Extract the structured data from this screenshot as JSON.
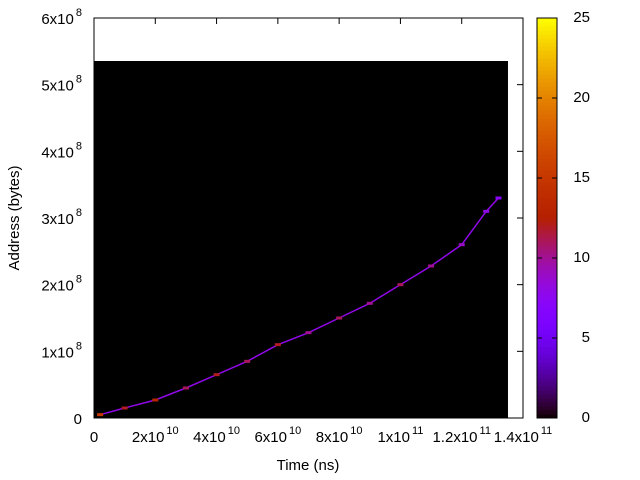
{
  "chart_data": {
    "type": "heatmap",
    "xlabel": "Time (ns)",
    "ylabel": "Address (bytes)",
    "xlim": [
      0,
      140000000000
    ],
    "ylim": [
      0,
      600000000
    ],
    "zlim": [
      0,
      25
    ],
    "xticks": [
      0,
      {
        "value": 20000000000,
        "label": "2x10",
        "power": "10"
      },
      {
        "value": 40000000000,
        "label": "4x10",
        "power": "10"
      },
      {
        "value": 60000000000,
        "label": "6x10",
        "power": "10"
      },
      {
        "value": 80000000000,
        "label": "8x10",
        "power": "10"
      },
      {
        "value": 100000000000,
        "label": "1x10",
        "power": "11"
      },
      {
        "value": 120000000000,
        "label": "1.2x10",
        "power": "11"
      },
      {
        "value": 140000000000,
        "label": "1.4x10",
        "power": "11"
      }
    ],
    "yticks": [
      0,
      {
        "value": 100000000,
        "label": "1x10",
        "power": "8"
      },
      {
        "value": 200000000,
        "label": "2x10",
        "power": "8"
      },
      {
        "value": 300000000,
        "label": "3x10",
        "power": "8"
      },
      {
        "value": 400000000,
        "label": "4x10",
        "power": "8"
      },
      {
        "value": 500000000,
        "label": "5x10",
        "power": "8"
      },
      {
        "value": 600000000,
        "label": "6x10",
        "power": "8"
      }
    ],
    "zticks": [
      0,
      5,
      10,
      15,
      20,
      25
    ],
    "grid_extent": {
      "x": [
        0,
        135100000000
      ],
      "y": [
        0,
        535500000
      ]
    },
    "x": [
      2000000000,
      10000000000,
      20000000000,
      30000000000,
      40000000000,
      50000000000,
      60000000000,
      70000000000,
      80000000000,
      90000000000,
      100000000000,
      110000000000,
      120000000000,
      128000000000,
      132000000000
    ],
    "y": [
      5000000,
      15000000,
      27000000,
      45000000,
      65000000,
      85000000,
      110000000,
      128000000,
      150000000,
      172000000,
      200000000,
      228000000,
      260000000,
      310000000,
      330000000
    ],
    "values": [
      15,
      12,
      13,
      11,
      12,
      11,
      12,
      10,
      11,
      10,
      11,
      10,
      9,
      8,
      7
    ]
  }
}
